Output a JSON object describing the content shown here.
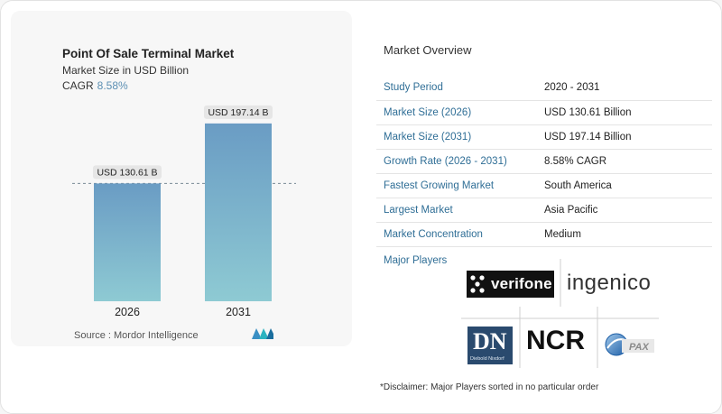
{
  "chart_data": {
    "type": "bar",
    "title": "Point Of Sale Terminal Market",
    "subtitle": "Market Size in USD Billion",
    "cagr_label": "CAGR",
    "cagr_value": "8.58%",
    "categories": [
      "2026",
      "2031"
    ],
    "values": [
      130.61,
      197.14
    ],
    "data_labels": [
      "USD 130.61 B",
      "USD 197.14 B"
    ],
    "ylim": [
      0,
      210
    ],
    "reference_line_value": 130.61,
    "colors": {
      "bar_top": "#6a9cc4",
      "bar_bottom": "#8ecad3",
      "label_bg": "#e6e6e6"
    }
  },
  "source": {
    "text": "Source :  Mordor Intelligence"
  },
  "overview": {
    "title": "Market Overview",
    "rows": [
      {
        "key": "Study Period",
        "value": "2020 - 2031"
      },
      {
        "key": "Market Size (2026)",
        "value": "USD 130.61 Billion"
      },
      {
        "key": "Market Size (2031)",
        "value": "USD 197.14 Billion"
      },
      {
        "key": "Growth Rate (2026 - 2031)",
        "value": "8.58% CAGR"
      },
      {
        "key": "Fastest Growing Market",
        "value": "South America"
      },
      {
        "key": "Largest Market",
        "value": "Asia Pacific"
      },
      {
        "key": "Market Concentration",
        "value": "Medium"
      }
    ]
  },
  "players": {
    "label": "Major Players",
    "logos": {
      "verifone": "verifone",
      "ingenico": "ingenico",
      "ncr": "NCR",
      "dn_mark": "DN",
      "dn_text": "Diebold Nixdorf",
      "pax": "PAX"
    }
  },
  "disclaimer": "*Disclaimer: Major Players sorted in no particular order"
}
